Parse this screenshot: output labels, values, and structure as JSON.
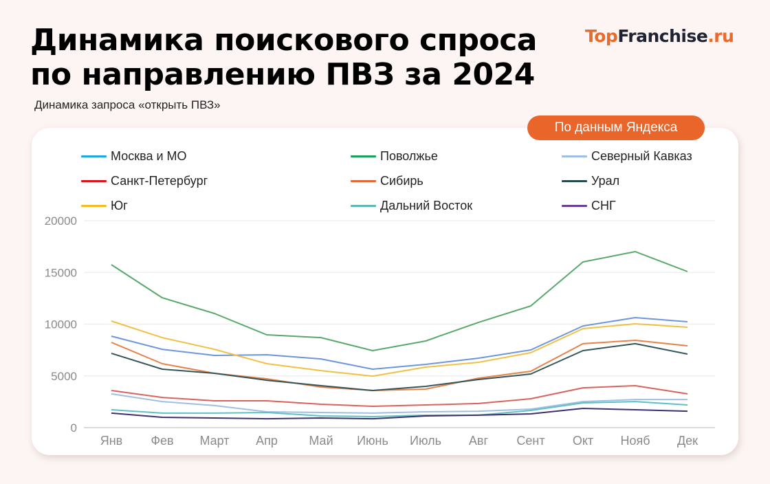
{
  "header": {
    "title_line1": "Динамика поискового спроса",
    "title_line2": "по направлению ПВЗ за 2024",
    "subtitle": "Динамика запроса «открыть ПВЗ»",
    "logo_part1": "Top",
    "logo_part2": "Franchise",
    "logo_part3": ".ru",
    "badge": "По данным Яндекса"
  },
  "colors": {
    "background": "#fdf5f3",
    "accent": "#e9652a",
    "card": "#ffffff"
  },
  "chart_data": {
    "type": "line",
    "title": "Динамика поискового спроса по направлению ПВЗ за 2024",
    "subtitle": "Динамика запроса «открыть ПВЗ»",
    "xlabel": "",
    "ylabel": "",
    "ylim": [
      0,
      20000
    ],
    "yticks": [
      0,
      5000,
      10000,
      15000,
      20000
    ],
    "grid": true,
    "legend_position": "top",
    "categories": [
      "Янв",
      "Фев",
      "Март",
      "Апр",
      "Май",
      "Июнь",
      "Июль",
      "Авг",
      "Сент",
      "Окт",
      "Нояб",
      "Дек"
    ],
    "series": [
      {
        "name": "Москва и МО",
        "legend_color": "#1ea7e1",
        "line_color": "#6d95dd",
        "values": [
          8840,
          7570,
          6980,
          7040,
          6640,
          5650,
          6110,
          6710,
          7510,
          9830,
          10630,
          10230
        ]
      },
      {
        "name": "Поволжье",
        "legend_color": "#1aa05a",
        "line_color": "#58a86a",
        "values": [
          15750,
          12550,
          11030,
          8970,
          8700,
          7440,
          8370,
          10170,
          11760,
          16010,
          17010,
          15080
        ]
      },
      {
        "name": "Северный Кавказ",
        "legend_color": "#9ebfe3",
        "line_color": "#9ebfe3",
        "values": [
          3260,
          2520,
          2130,
          1530,
          1460,
          1400,
          1530,
          1590,
          1790,
          2520,
          2720,
          2720
        ]
      },
      {
        "name": "Санкт-Петербург",
        "legend_color": "#d9141c",
        "line_color": "#d9635c",
        "values": [
          3590,
          2920,
          2590,
          2590,
          2260,
          2060,
          2190,
          2330,
          2790,
          3850,
          4050,
          3260
        ]
      },
      {
        "name": "Сибирь",
        "legend_color": "#e06a3a",
        "line_color": "#e4824a",
        "values": [
          8240,
          6180,
          5250,
          4720,
          3920,
          3590,
          3720,
          4780,
          5450,
          8110,
          8440,
          7910
        ]
      },
      {
        "name": "Урал",
        "legend_color": "#264a50",
        "line_color": "#33555a",
        "values": [
          7180,
          5650,
          5250,
          4580,
          4050,
          3590,
          3990,
          4650,
          5180,
          7440,
          8110,
          7110
        ]
      },
      {
        "name": "Юг",
        "legend_color": "#f2bd23",
        "line_color": "#f1c042",
        "values": [
          10300,
          8700,
          7570,
          6180,
          5510,
          4980,
          5850,
          6310,
          7240,
          9570,
          10030,
          9700
        ]
      },
      {
        "name": "Дальний Восток",
        "legend_color": "#5fb5b2",
        "line_color": "#5fc0c4",
        "values": [
          1730,
          1400,
          1400,
          1460,
          1130,
          1060,
          1200,
          1200,
          1660,
          2390,
          2520,
          2190
        ]
      },
      {
        "name": "СНГ",
        "legend_color": "#6a3c97",
        "line_color": "#3f2f6e",
        "values": [
          1400,
          1000,
          930,
          860,
          930,
          860,
          1130,
          1200,
          1330,
          1860,
          1730,
          1590
        ]
      }
    ]
  }
}
